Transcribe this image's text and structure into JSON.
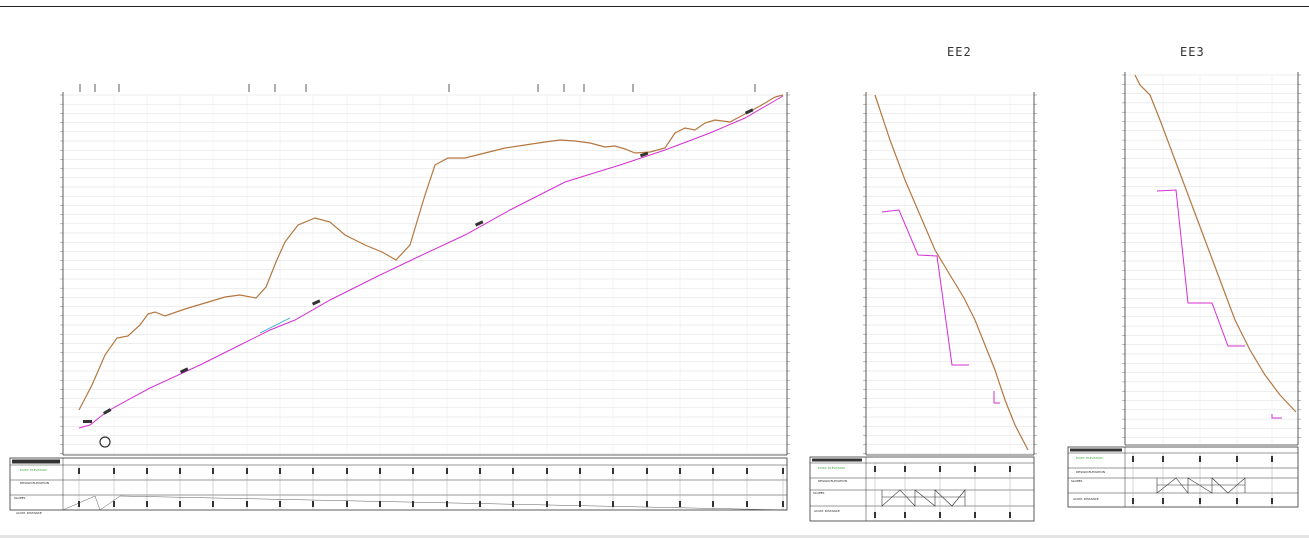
{
  "profiles": [
    {
      "id": "main",
      "title": ""
    },
    {
      "id": "ee2",
      "title": "EE2"
    },
    {
      "id": "ee3",
      "title": "EE3"
    }
  ],
  "table_rows": [
    "EXIST. ELEVATION",
    "DESIGN ELEVATION",
    "SLOPES",
    "ACUM. DISTANCE"
  ],
  "colors": {
    "ground_line": "#b5773f",
    "design_line": "#d52fd5",
    "grid": "#d9d9d9",
    "frame": "#333333",
    "label_green": "#3aa63a"
  }
}
